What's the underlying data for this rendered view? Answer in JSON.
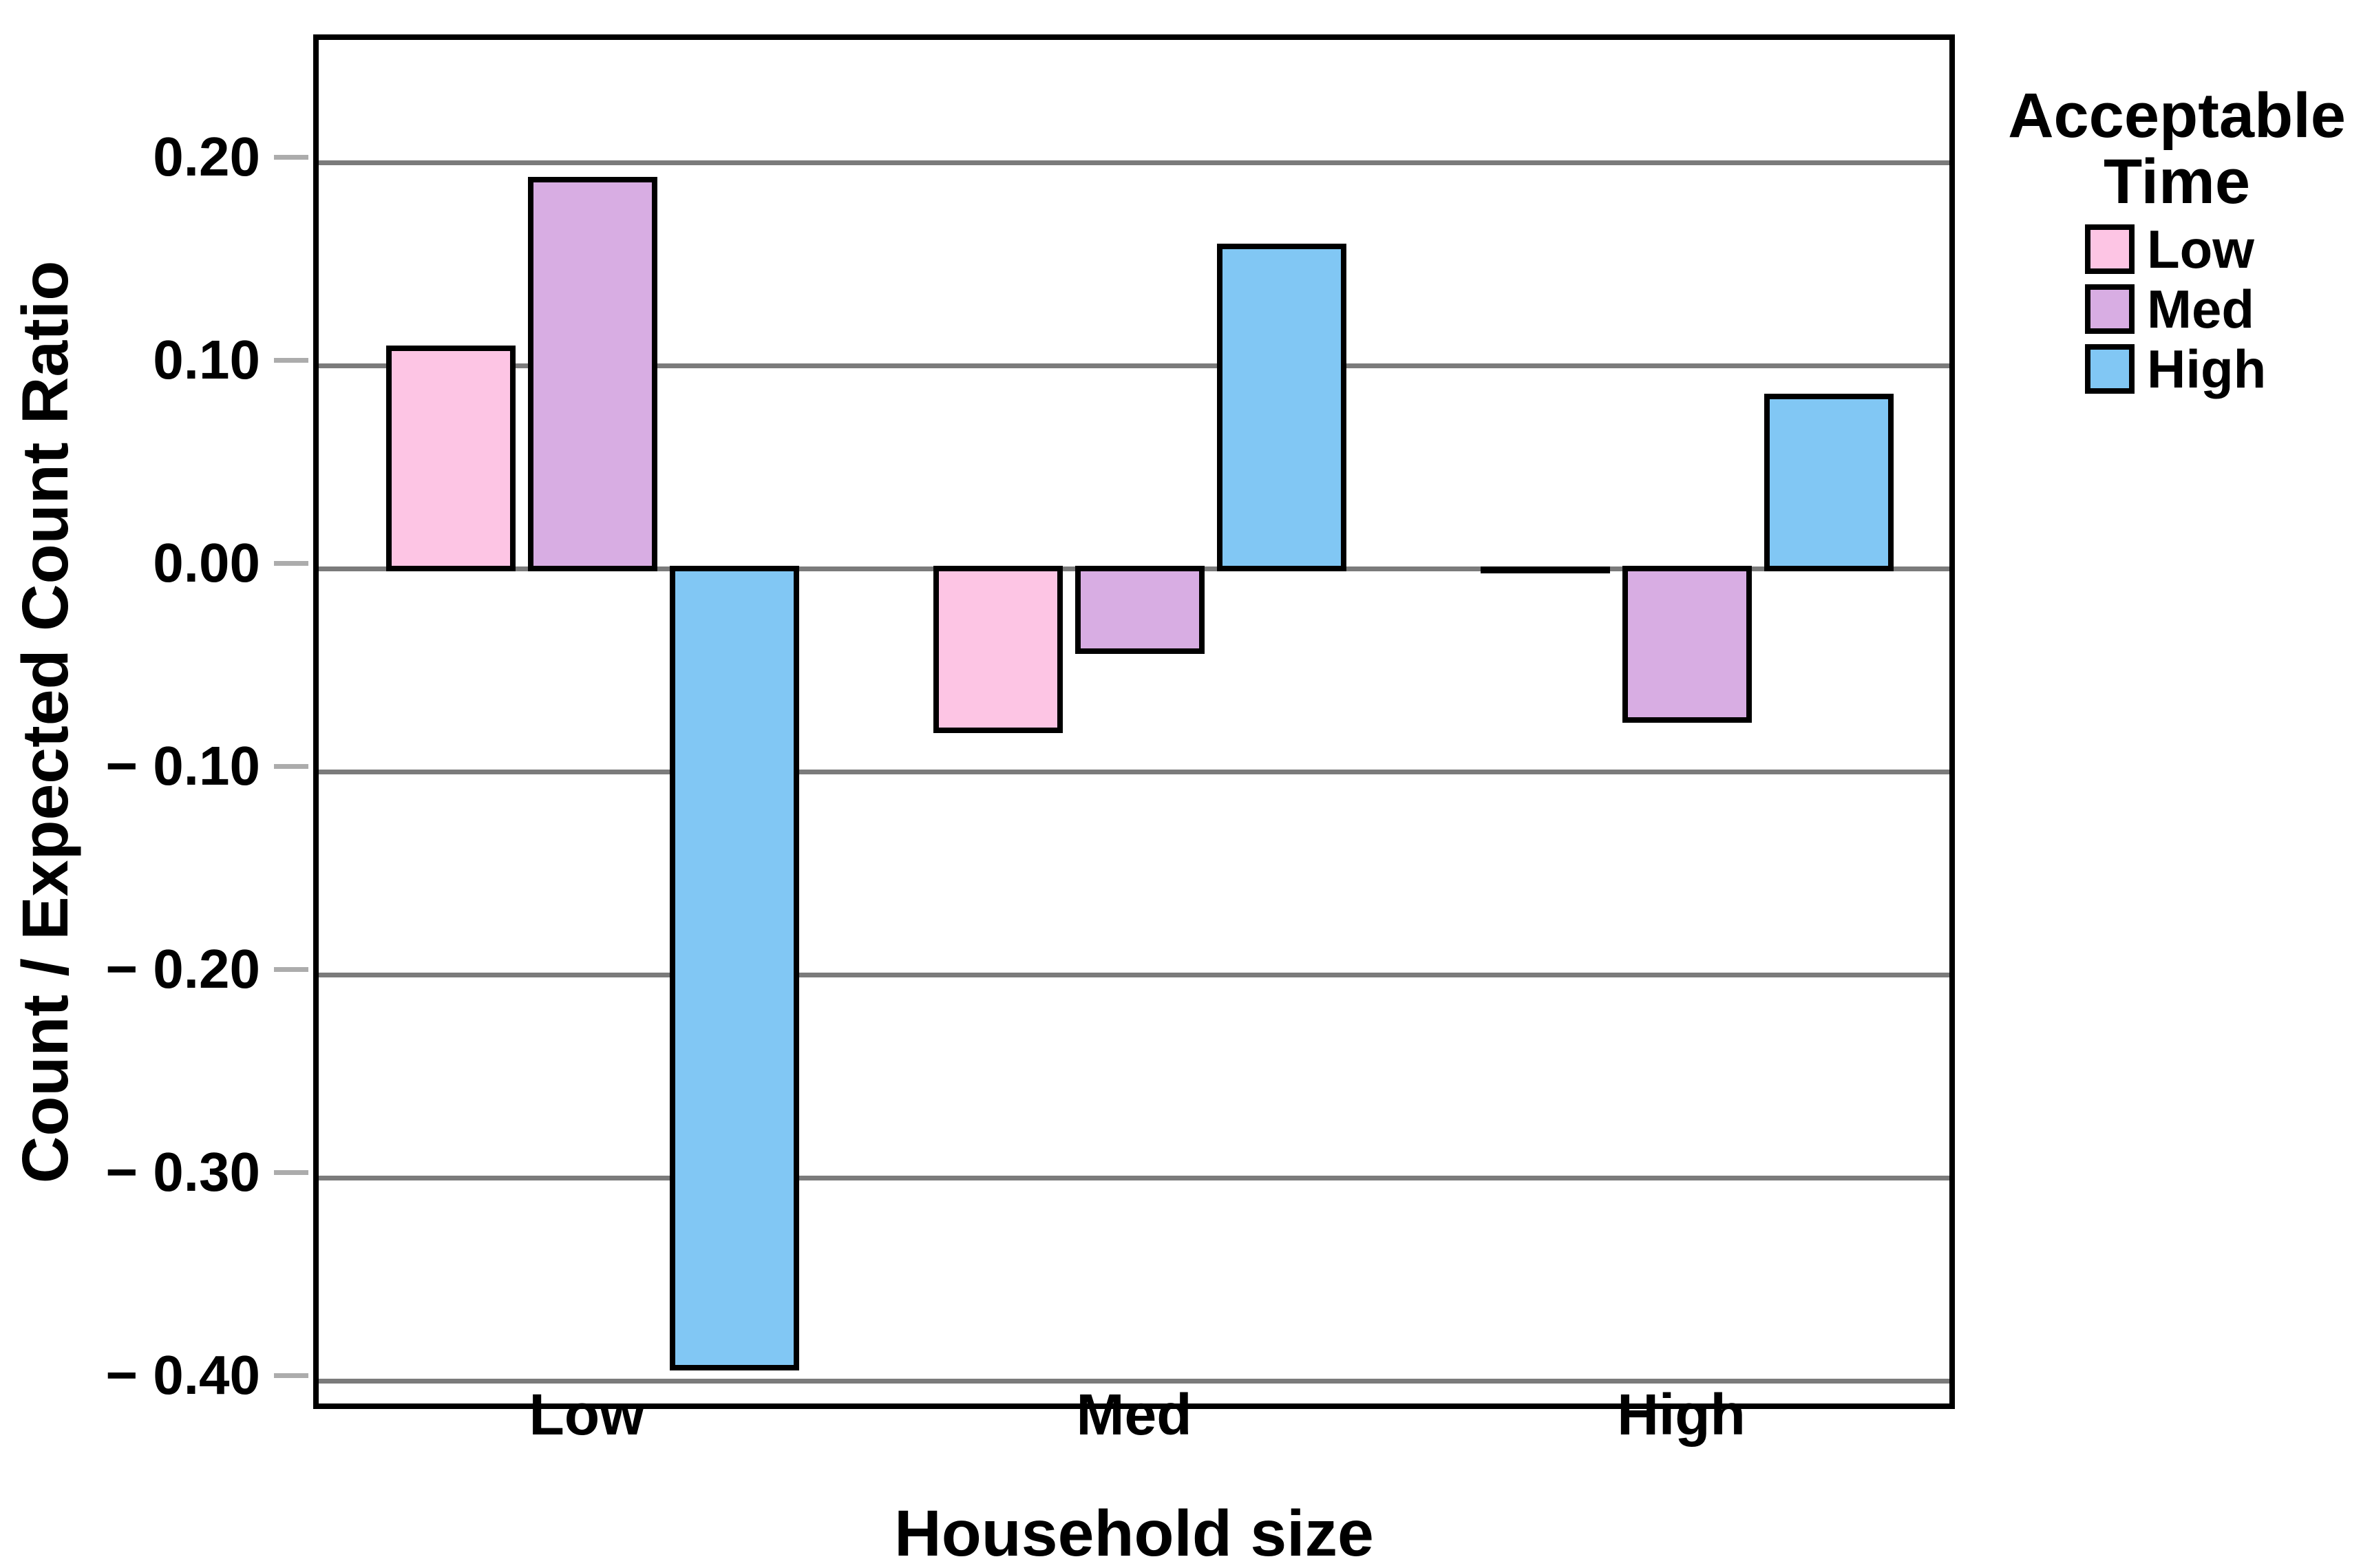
{
  "chart_data": {
    "type": "bar",
    "categories": [
      "Low",
      "Med",
      "High"
    ],
    "series": [
      {
        "name": "Low",
        "color": "#FDC5E4",
        "values": [
          0.11,
          -0.081,
          -0.002
        ]
      },
      {
        "name": "Med",
        "color": "#D8ADE3",
        "values": [
          0.193,
          -0.042,
          -0.076
        ]
      },
      {
        "name": "High",
        "color": "#81C7F4",
        "values": [
          -0.395,
          0.16,
          0.086
        ]
      }
    ],
    "xlabel": "Household size",
    "ylabel": "Count / Expected Count Ratio",
    "ylim": [
      -0.42,
      0.26
    ],
    "yticks": [
      {
        "value": 0.2,
        "label": "0.20"
      },
      {
        "value": 0.1,
        "label": "0.10"
      },
      {
        "value": 0.0,
        "label": "0.00"
      },
      {
        "value": -0.1,
        "label": "− 0.10"
      },
      {
        "value": -0.2,
        "label": "− 0.20"
      },
      {
        "value": -0.3,
        "label": "− 0.30"
      },
      {
        "value": -0.4,
        "label": "− 0.40"
      }
    ],
    "grid": "horizontal",
    "legend": {
      "title_line1": "Acceptable",
      "title_line2": "Time",
      "position": "top-right",
      "entries": [
        "Low",
        "Med",
        "High"
      ]
    }
  },
  "colors": {
    "background": "#FFFFFF",
    "frame": "#000000",
    "bar_border": "#000000",
    "gridline": "#7B7B7B",
    "tick_mark": "#ACACAC",
    "text": "#000000"
  }
}
